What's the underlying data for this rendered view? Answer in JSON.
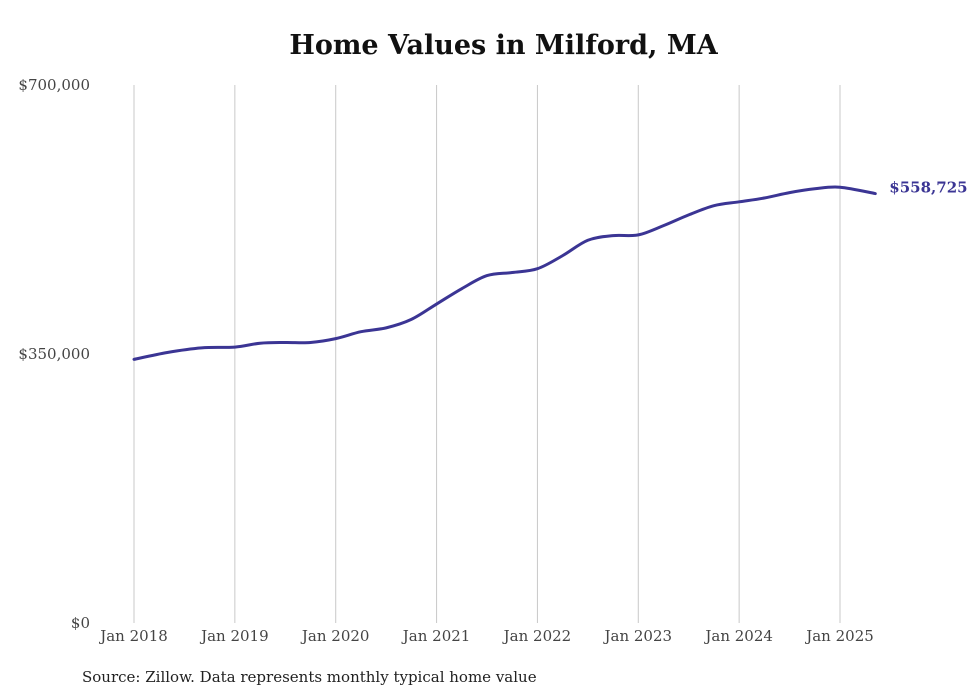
{
  "chart_data": {
    "type": "line",
    "title": "Home Values in Milford, MA",
    "xlabel": "",
    "ylabel": "",
    "ylim": [
      0,
      700000
    ],
    "y_ticks": [
      {
        "value": 0,
        "label": "$0"
      },
      {
        "value": 350000,
        "label": "$350,000"
      },
      {
        "value": 700000,
        "label": "$700,000"
      }
    ],
    "x_ticks": [
      {
        "value": 2018,
        "label": "Jan 2018"
      },
      {
        "value": 2019,
        "label": "Jan 2019"
      },
      {
        "value": 2020,
        "label": "Jan 2020"
      },
      {
        "value": 2021,
        "label": "Jan 2021"
      },
      {
        "value": 2022,
        "label": "Jan 2022"
      },
      {
        "value": 2023,
        "label": "Jan 2023"
      },
      {
        "value": 2024,
        "label": "Jan 2024"
      },
      {
        "value": 2025,
        "label": "Jan 2025"
      }
    ],
    "xlim": [
      2017.55,
      2026.2
    ],
    "grid": "vertical",
    "series": [
      {
        "color": "#3b3594",
        "x": [
          2018.0,
          2018.33,
          2018.67,
          2019.0,
          2019.25,
          2019.5,
          2019.75,
          2020.0,
          2020.25,
          2020.5,
          2020.75,
          2021.0,
          2021.25,
          2021.5,
          2021.75,
          2022.0,
          2022.25,
          2022.5,
          2022.75,
          2023.0,
          2023.25,
          2023.5,
          2023.75,
          2024.0,
          2024.25,
          2024.5,
          2024.75,
          2025.0,
          2025.35
        ],
        "values": [
          343000,
          352000,
          358000,
          359000,
          364000,
          365000,
          365000,
          370000,
          379000,
          384000,
          395000,
          415000,
          435000,
          452000,
          456000,
          461000,
          478000,
          498000,
          504000,
          505000,
          517000,
          531000,
          543000,
          548000,
          553000,
          560000,
          565000,
          567000,
          558725
        ]
      }
    ],
    "end_label": "$558,725"
  },
  "source": "Source: Zillow. Data represents monthly typical home value"
}
